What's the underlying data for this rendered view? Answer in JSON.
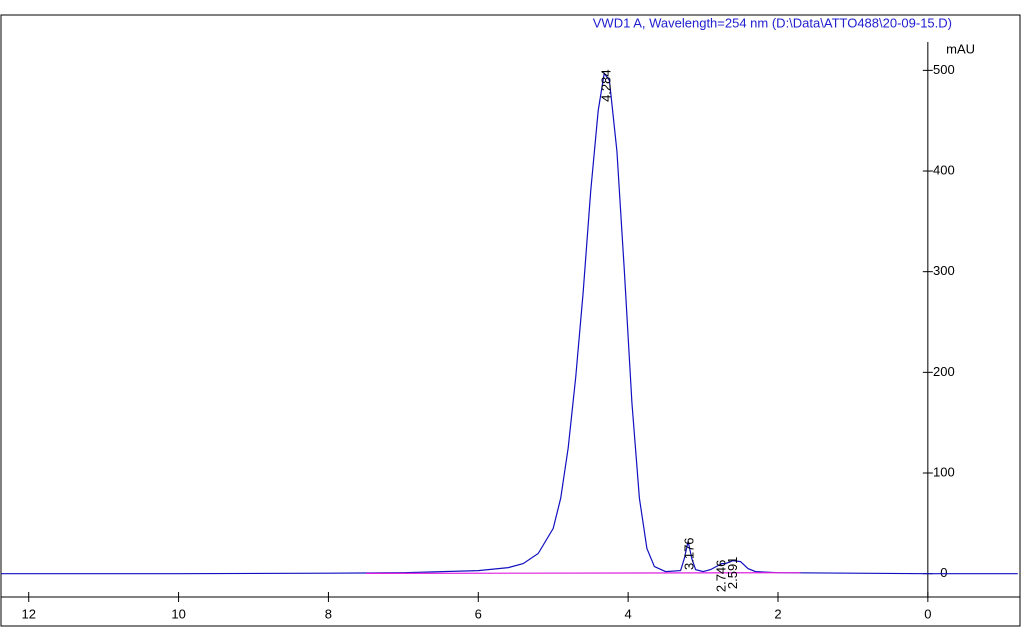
{
  "chart_data": {
    "type": "line",
    "title": "VWD1 A, Wavelength=254 nm (D:\\Data\\ATTO488\\20-09-15.D)",
    "y_label": "mAU",
    "xlim": [
      -1.23,
      12.37
    ],
    "ylim": [
      -52,
      555
    ],
    "xticks": [
      0,
      2,
      4,
      6,
      8,
      10,
      12
    ],
    "yticks": [
      0,
      100,
      200,
      300,
      400,
      500
    ],
    "mirrored": true,
    "series": [
      {
        "color": "#1010c0",
        "x": [
          12.37,
          10,
          8,
          7,
          6,
          5.6,
          5.4,
          5.2,
          5.0,
          4.9,
          4.8,
          4.7,
          4.6,
          4.5,
          4.4,
          4.32,
          4.25,
          4.15,
          4.05,
          3.95,
          3.85,
          3.75,
          3.65,
          3.5,
          3.3,
          3.25,
          3.2,
          3.15,
          3.1,
          3.0,
          2.9,
          2.8,
          2.75,
          2.7,
          2.6,
          2.5,
          2.4,
          2.3,
          2.0,
          1.0,
          0,
          -1.2
        ],
        "values": [
          0,
          0,
          0.5,
          1,
          3,
          6,
          10,
          20,
          45,
          75,
          125,
          195,
          280,
          380,
          460,
          497,
          490,
          420,
          300,
          170,
          75,
          25,
          7,
          2,
          3,
          15,
          32,
          15,
          4,
          2,
          4,
          8,
          10,
          10,
          13,
          12,
          5,
          2,
          1,
          0.5,
          0,
          0
        ]
      },
      {
        "color": "#e020e0",
        "x": [
          7.5,
          1.7
        ],
        "values": [
          0.3,
          1
        ]
      }
    ],
    "annotations": [
      {
        "text": "4.284",
        "x": 4.284,
        "y": 497
      },
      {
        "text": "3.176",
        "x": 3.176,
        "y": 32
      },
      {
        "text": "2.746",
        "x": 2.746,
        "y": 10
      },
      {
        "text": "2.591",
        "x": 2.591,
        "y": 13
      }
    ]
  }
}
